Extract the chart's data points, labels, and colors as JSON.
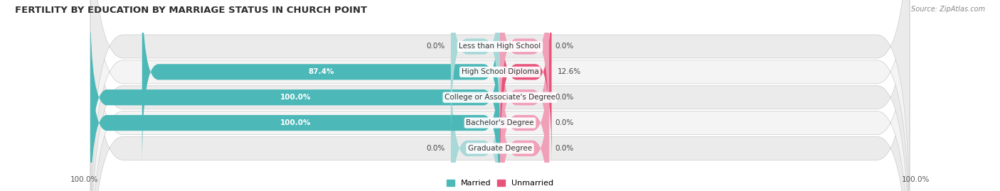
{
  "title": "FERTILITY BY EDUCATION BY MARRIAGE STATUS IN CHURCH POINT",
  "source": "Source: ZipAtlas.com",
  "categories": [
    "Less than High School",
    "High School Diploma",
    "College or Associate's Degree",
    "Bachelor's Degree",
    "Graduate Degree"
  ],
  "married_pct": [
    0.0,
    87.4,
    100.0,
    100.0,
    0.0
  ],
  "unmarried_pct": [
    0.0,
    12.6,
    0.0,
    0.0,
    0.0
  ],
  "married_color": "#4db8b8",
  "unmarried_color": "#e8537a",
  "married_light": "#a8d8d8",
  "unmarried_light": "#f0a0b8",
  "row_bg_color": "#e8e8e8",
  "row_alt_bg": "#f0f0f0",
  "title_fontsize": 9.5,
  "source_fontsize": 7,
  "label_fontsize": 7.5,
  "value_fontsize": 7.5,
  "legend_fontsize": 8,
  "x_left_label": "100.0%",
  "x_right_label": "100.0%",
  "figsize": [
    14.06,
    2.69
  ],
  "dpi": 100,
  "max_val": 100.0,
  "stub_pct": 12.0
}
